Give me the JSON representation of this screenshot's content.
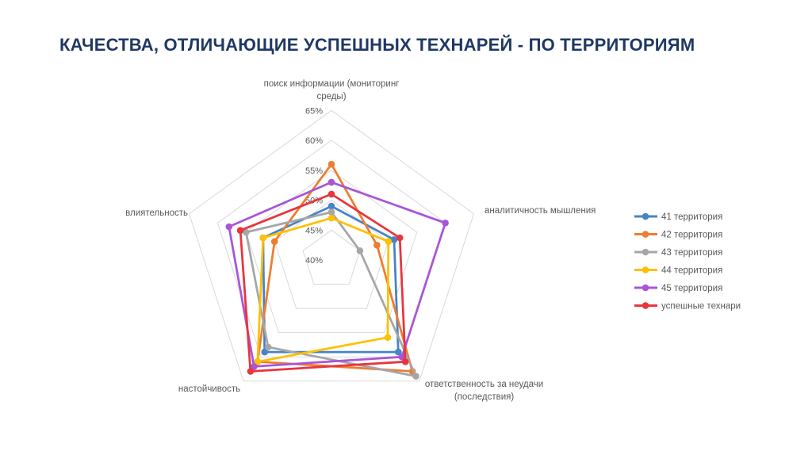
{
  "title": "КАЧЕСТВА, ОТЛИЧАЮЩИЕ УСПЕШНЫХ ТЕХНАРЕЙ - ПО ТЕРРИТОРИЯМ",
  "colors": {
    "title": "#1F3864",
    "axis_label": "#595959",
    "grid": "#D9D9D9",
    "background": "#FFFFFF"
  },
  "chart_data": {
    "type": "radar",
    "title": "КАЧЕСТВА, ОТЛИЧАЮЩИЕ УСПЕШНЫХ ТЕХНАРЕЙ - ПО ТЕРРИТОРИЯМ",
    "categories": [
      "поиск информации (мониторинг среды)",
      "аналитичность мышления",
      "ответственность за неудачи (последствия)",
      "настойчивость",
      "влиятельность"
    ],
    "axis_min": 40,
    "axis_max": 65,
    "tick_step": 5,
    "tick_labels": [
      "65%",
      "60%",
      "55%",
      "50%",
      "45%",
      "40%"
    ],
    "grid": true,
    "legend_position": "right",
    "series": [
      {
        "name": "41 территория",
        "color": "#4584C6",
        "values": [
          49,
          51,
          59,
          59,
          52
        ]
      },
      {
        "name": "42 территория",
        "color": "#ED7D31",
        "values": [
          56,
          48,
          63,
          61,
          50
        ]
      },
      {
        "name": "43 территория",
        "color": "#A6A6A6",
        "values": [
          48,
          45,
          64,
          58,
          55
        ]
      },
      {
        "name": "44 территория",
        "color": "#FFC000",
        "values": [
          47,
          50,
          56,
          61,
          52
        ]
      },
      {
        "name": "45 территория",
        "color": "#A855D8",
        "values": [
          53,
          60,
          60,
          62,
          58
        ]
      },
      {
        "name": "успешные технари",
        "color": "#E8353E",
        "values": [
          51,
          52,
          61,
          63,
          56
        ]
      }
    ]
  }
}
